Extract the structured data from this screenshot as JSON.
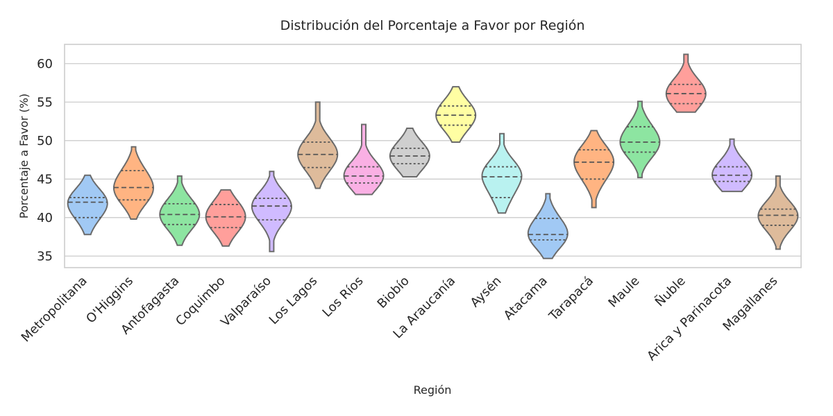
{
  "chart_data": {
    "type": "violin",
    "title": "Distribución del Porcentaje a Favor por Región",
    "xlabel": "Región",
    "ylabel": "Porcentaje a Favor (%)",
    "ylim": [
      33.5,
      62.5
    ],
    "yticks": [
      35,
      40,
      45,
      50,
      55,
      60
    ],
    "grid": "horizontal",
    "inner": "quartile",
    "categories": [
      "Metropolitana",
      "O'Higgins",
      "Antofagasta",
      "Coquimbo",
      "Valparaíso",
      "Los Lagos",
      "Los Ríos",
      "Biobío",
      "La Araucanía",
      "Aysén",
      "Atacama",
      "Tarapacá",
      "Maule",
      "Ñuble",
      "Arica y Parinacota",
      "Magallanes"
    ],
    "colors": [
      "#a1c9f4",
      "#ffb482",
      "#8de5a1",
      "#ff9f9b",
      "#d0bbff",
      "#debb9b",
      "#fab0e4",
      "#cfcfcf",
      "#fffea3",
      "#b9f2f0",
      "#a1c9f4",
      "#ffb482",
      "#8de5a1",
      "#ff9f9b",
      "#d0bbff",
      "#debb9b"
    ],
    "series": [
      {
        "category": "Metropolitana",
        "min": 37.8,
        "q1": 40.0,
        "median": 42.0,
        "q3": 42.6,
        "max": 45.5
      },
      {
        "category": "O'Higgins",
        "min": 39.8,
        "q1": 42.3,
        "median": 43.9,
        "q3": 46.1,
        "max": 49.2
      },
      {
        "category": "Antofagasta",
        "min": 36.4,
        "q1": 39.1,
        "median": 40.4,
        "q3": 41.8,
        "max": 45.4
      },
      {
        "category": "Coquimbo",
        "min": 36.3,
        "q1": 38.7,
        "median": 40.1,
        "q3": 41.7,
        "max": 43.6
      },
      {
        "category": "Valparaíso",
        "min": 35.6,
        "q1": 39.7,
        "median": 41.5,
        "q3": 42.5,
        "max": 46.0
      },
      {
        "category": "Los Lagos",
        "min": 43.8,
        "q1": 46.5,
        "median": 48.2,
        "q3": 49.8,
        "max": 55.0
      },
      {
        "category": "Los Ríos",
        "min": 43.0,
        "q1": 44.5,
        "median": 45.4,
        "q3": 46.6,
        "max": 52.1
      },
      {
        "category": "Biobío",
        "min": 45.3,
        "q1": 47.0,
        "median": 48.0,
        "q3": 49.0,
        "max": 51.6
      },
      {
        "category": "La Araucanía",
        "min": 49.8,
        "q1": 52.0,
        "median": 53.3,
        "q3": 54.5,
        "max": 57.0
      },
      {
        "category": "Aysén",
        "min": 40.6,
        "q1": 42.6,
        "median": 45.3,
        "q3": 46.6,
        "max": 50.9
      },
      {
        "category": "Atacama",
        "min": 34.7,
        "q1": 37.1,
        "median": 37.8,
        "q3": 39.9,
        "max": 43.1
      },
      {
        "category": "Tarapacá",
        "min": 41.3,
        "q1": 45.0,
        "median": 47.2,
        "q3": 48.8,
        "max": 51.3
      },
      {
        "category": "Maule",
        "min": 45.2,
        "q1": 48.5,
        "median": 49.8,
        "q3": 51.8,
        "max": 55.1
      },
      {
        "category": "Ñuble",
        "min": 53.7,
        "q1": 54.8,
        "median": 56.1,
        "q3": 57.3,
        "max": 61.2
      },
      {
        "category": "Arica y Parinacota",
        "min": 43.4,
        "q1": 44.7,
        "median": 45.5,
        "q3": 46.6,
        "max": 50.2
      },
      {
        "category": "Magallanes",
        "min": 35.9,
        "q1": 39.0,
        "median": 40.3,
        "q3": 41.1,
        "max": 45.4
      }
    ]
  }
}
